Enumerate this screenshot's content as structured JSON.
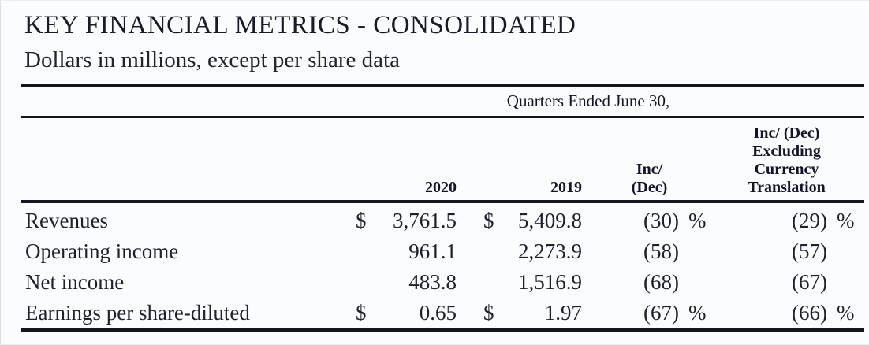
{
  "page": {
    "title": "KEY FINANCIAL METRICS - CONSOLIDATED",
    "subtitle": "Dollars in millions, except per share data"
  },
  "table": {
    "group_header": "Quarters Ended June 30,",
    "columns": {
      "col_2020": "2020",
      "col_2019": "2019",
      "col_incdec": "Inc/\n(Dec)",
      "col_incdec_excl": "Inc/ (Dec)\nExcluding\nCurrency\nTranslation"
    },
    "rows": [
      {
        "label": "Revenues",
        "cur_2020": "$",
        "val_2020": "3,761.5",
        "cur_2019": "$",
        "val_2019": "5,409.8",
        "inc_dec": "(30)",
        "inc_dec_pct": "%",
        "excl_currency": "(29)",
        "excl_currency_pct": "%"
      },
      {
        "label": "Operating income",
        "cur_2020": "",
        "val_2020": "961.1",
        "cur_2019": "",
        "val_2019": "2,273.9",
        "inc_dec": "(58)",
        "inc_dec_pct": "",
        "excl_currency": "(57)",
        "excl_currency_pct": ""
      },
      {
        "label": "Net income",
        "cur_2020": "",
        "val_2020": "483.8",
        "cur_2019": "",
        "val_2019": "1,516.9",
        "inc_dec": "(68)",
        "inc_dec_pct": "",
        "excl_currency": "(67)",
        "excl_currency_pct": ""
      },
      {
        "label": "Earnings per share-diluted",
        "cur_2020": "$",
        "val_2020": "0.65",
        "cur_2019": "$",
        "val_2019": "1.97",
        "inc_dec": "(67)",
        "inc_dec_pct": "%",
        "excl_currency": "(66)",
        "excl_currency_pct": "%"
      }
    ]
  }
}
